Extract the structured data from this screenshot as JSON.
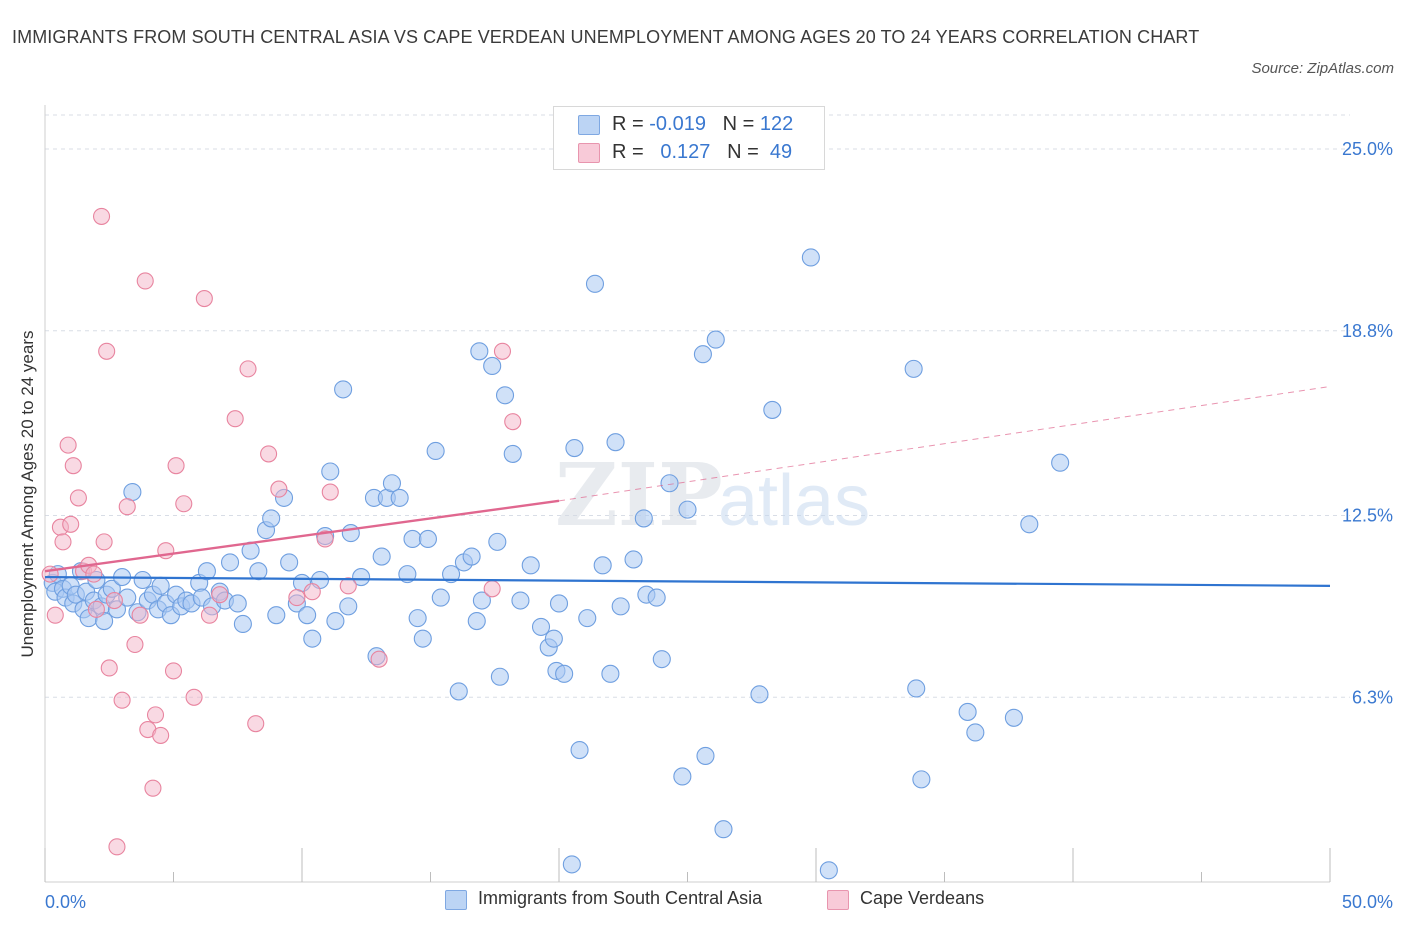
{
  "title": "IMMIGRANTS FROM SOUTH CENTRAL ASIA VS CAPE VERDEAN UNEMPLOYMENT AMONG AGES 20 TO 24 YEARS CORRELATION CHART",
  "source": "Source: ZipAtlas.com",
  "watermark": {
    "zip": "ZIP",
    "atlas": "atlas"
  },
  "legend_top": {
    "rows": [
      {
        "r_label": "R =",
        "r_value": "-0.019",
        "n_label": "N =",
        "n_value": "122",
        "color": "#a9c8f2"
      },
      {
        "r_label": "R =",
        "r_value": "0.127",
        "n_label": "N =",
        "n_value": "49",
        "color": "#f4b3c8"
      }
    ]
  },
  "legend_bottom": {
    "items": [
      {
        "label": "Immigrants from South Central Asia",
        "color": "#a9c8f2"
      },
      {
        "label": "Cape Verdeans",
        "color": "#f4b3c8"
      }
    ]
  },
  "colors": {
    "blue_fill": "#a9c8f2",
    "blue_stroke": "#6f9fe0",
    "blue_line": "#2f74d0",
    "pink_fill": "#f4b3c8",
    "pink_stroke": "#e8849f",
    "pink_line": "#e0678f",
    "tick_label": "#3a78d0",
    "grid": "#d8dde6"
  },
  "chart_data": {
    "type": "scatter",
    "title": "IMMIGRANTS FROM SOUTH CENTRAL ASIA VS CAPE VERDEAN UNEMPLOYMENT AMONG AGES 20 TO 24 YEARS CORRELATION CHART",
    "xlabel": "",
    "ylabel": "Unemployment Among Ages 20 to 24 years",
    "xlim": [
      0,
      50
    ],
    "ylim": [
      0,
      26.5
    ],
    "x_tick_labels": [
      "0.0%",
      "50.0%"
    ],
    "y_ticks": [
      6.3,
      12.5,
      18.8,
      25.0
    ],
    "y_tick_labels": [
      "6.3%",
      "12.5%",
      "18.8%",
      "25.0%"
    ],
    "grid": "horizontal dashed",
    "legend_position": "top-center",
    "series": [
      {
        "name": "Immigrants from South Central Asia",
        "trend": {
          "x": [
            0,
            50
          ],
          "y": [
            10.4,
            10.1
          ],
          "style": "solid"
        },
        "points": [
          [
            0.3,
            10.2
          ],
          [
            0.4,
            9.9
          ],
          [
            0.5,
            10.5
          ],
          [
            0.7,
            10.0
          ],
          [
            0.8,
            9.7
          ],
          [
            1.0,
            10.1
          ],
          [
            1.1,
            9.5
          ],
          [
            1.2,
            9.8
          ],
          [
            1.4,
            10.6
          ],
          [
            1.5,
            9.3
          ],
          [
            1.6,
            9.9
          ],
          [
            1.7,
            9.0
          ],
          [
            1.9,
            9.6
          ],
          [
            2.0,
            10.3
          ],
          [
            2.2,
            9.4
          ],
          [
            2.3,
            8.9
          ],
          [
            2.4,
            9.8
          ],
          [
            2.6,
            10.0
          ],
          [
            2.8,
            9.3
          ],
          [
            3.0,
            10.4
          ],
          [
            3.2,
            9.7
          ],
          [
            3.4,
            13.3
          ],
          [
            3.6,
            9.2
          ],
          [
            3.8,
            10.3
          ],
          [
            4.0,
            9.6
          ],
          [
            4.2,
            9.8
          ],
          [
            4.4,
            9.3
          ],
          [
            4.5,
            10.1
          ],
          [
            4.7,
            9.5
          ],
          [
            4.9,
            9.1
          ],
          [
            5.1,
            9.8
          ],
          [
            5.3,
            9.4
          ],
          [
            5.5,
            9.6
          ],
          [
            5.7,
            9.5
          ],
          [
            6.0,
            10.2
          ],
          [
            6.1,
            9.7
          ],
          [
            6.3,
            10.6
          ],
          [
            6.5,
            9.4
          ],
          [
            6.8,
            9.9
          ],
          [
            7.0,
            9.6
          ],
          [
            7.2,
            10.9
          ],
          [
            7.5,
            9.5
          ],
          [
            7.7,
            8.8
          ],
          [
            8.0,
            11.3
          ],
          [
            8.3,
            10.6
          ],
          [
            8.6,
            12.0
          ],
          [
            8.8,
            12.4
          ],
          [
            9.0,
            9.1
          ],
          [
            9.3,
            13.1
          ],
          [
            9.5,
            10.9
          ],
          [
            9.8,
            9.5
          ],
          [
            10.0,
            10.2
          ],
          [
            10.2,
            9.1
          ],
          [
            10.4,
            8.3
          ],
          [
            10.7,
            10.3
          ],
          [
            10.9,
            11.8
          ],
          [
            11.1,
            14.0
          ],
          [
            11.3,
            8.9
          ],
          [
            11.6,
            16.8
          ],
          [
            11.8,
            9.4
          ],
          [
            11.9,
            11.9
          ],
          [
            12.3,
            10.4
          ],
          [
            12.8,
            13.1
          ],
          [
            12.9,
            7.7
          ],
          [
            13.1,
            11.1
          ],
          [
            13.3,
            13.1
          ],
          [
            13.5,
            13.6
          ],
          [
            13.8,
            13.1
          ],
          [
            14.1,
            10.5
          ],
          [
            14.3,
            11.7
          ],
          [
            14.5,
            9.0
          ],
          [
            14.7,
            8.3
          ],
          [
            14.9,
            11.7
          ],
          [
            15.2,
            14.7
          ],
          [
            15.4,
            9.7
          ],
          [
            15.8,
            10.5
          ],
          [
            16.1,
            6.5
          ],
          [
            16.3,
            10.9
          ],
          [
            16.6,
            11.1
          ],
          [
            16.8,
            8.9
          ],
          [
            16.9,
            18.1
          ],
          [
            17.0,
            9.6
          ],
          [
            17.4,
            17.6
          ],
          [
            17.6,
            11.6
          ],
          [
            17.7,
            7.0
          ],
          [
            17.9,
            16.6
          ],
          [
            18.2,
            14.6
          ],
          [
            18.5,
            9.6
          ],
          [
            18.9,
            10.8
          ],
          [
            19.3,
            8.7
          ],
          [
            19.6,
            8.0
          ],
          [
            19.8,
            8.3
          ],
          [
            19.9,
            7.2
          ],
          [
            20.0,
            9.5
          ],
          [
            20.2,
            7.1
          ],
          [
            20.6,
            14.8
          ],
          [
            20.8,
            4.5
          ],
          [
            21.1,
            9.0
          ],
          [
            21.4,
            20.4
          ],
          [
            21.7,
            10.8
          ],
          [
            22.0,
            7.1
          ],
          [
            22.2,
            15.0
          ],
          [
            22.4,
            9.4
          ],
          [
            22.9,
            11.0
          ],
          [
            23.3,
            12.4
          ],
          [
            23.4,
            9.8
          ],
          [
            23.8,
            9.7
          ],
          [
            24.0,
            7.6
          ],
          [
            24.3,
            13.6
          ],
          [
            24.8,
            3.6
          ],
          [
            25.0,
            12.7
          ],
          [
            25.6,
            18.0
          ],
          [
            25.7,
            4.3
          ],
          [
            26.1,
            18.5
          ],
          [
            26.4,
            1.8
          ],
          [
            27.8,
            6.4
          ],
          [
            28.3,
            16.1
          ],
          [
            29.8,
            21.3
          ],
          [
            33.8,
            17.5
          ],
          [
            33.9,
            6.6
          ],
          [
            34.1,
            3.5
          ],
          [
            35.9,
            5.8
          ],
          [
            36.2,
            5.1
          ],
          [
            37.7,
            5.6
          ],
          [
            38.3,
            12.2
          ],
          [
            39.5,
            14.3
          ],
          [
            20.5,
            0.6
          ],
          [
            30.5,
            0.4
          ]
        ]
      },
      {
        "name": "Cape Verdeans",
        "trend": {
          "x": [
            0,
            20,
            50
          ],
          "y": [
            10.6,
            13.0,
            16.9
          ],
          "style": "solid to 20, dashed beyond"
        },
        "points": [
          [
            0.2,
            10.5
          ],
          [
            0.4,
            9.1
          ],
          [
            0.6,
            12.1
          ],
          [
            0.7,
            11.6
          ],
          [
            0.9,
            14.9
          ],
          [
            1.0,
            12.2
          ],
          [
            1.1,
            14.2
          ],
          [
            1.3,
            13.1
          ],
          [
            1.5,
            10.6
          ],
          [
            1.7,
            10.8
          ],
          [
            1.9,
            10.5
          ],
          [
            2.0,
            9.3
          ],
          [
            2.2,
            22.7
          ],
          [
            2.3,
            11.6
          ],
          [
            2.4,
            18.1
          ],
          [
            2.5,
            7.3
          ],
          [
            2.7,
            9.6
          ],
          [
            2.8,
            1.2
          ],
          [
            3.0,
            6.2
          ],
          [
            3.2,
            12.8
          ],
          [
            3.5,
            8.1
          ],
          [
            3.7,
            9.1
          ],
          [
            3.9,
            20.5
          ],
          [
            4.0,
            5.2
          ],
          [
            4.2,
            3.2
          ],
          [
            4.3,
            5.7
          ],
          [
            4.5,
            5.0
          ],
          [
            4.7,
            11.3
          ],
          [
            5.0,
            7.2
          ],
          [
            5.1,
            14.2
          ],
          [
            5.4,
            12.9
          ],
          [
            5.8,
            6.3
          ],
          [
            6.2,
            19.9
          ],
          [
            6.4,
            9.1
          ],
          [
            6.8,
            9.8
          ],
          [
            7.4,
            15.8
          ],
          [
            7.9,
            17.5
          ],
          [
            8.2,
            5.4
          ],
          [
            8.7,
            14.6
          ],
          [
            9.1,
            13.4
          ],
          [
            9.8,
            9.7
          ],
          [
            10.4,
            9.9
          ],
          [
            11.1,
            13.3
          ],
          [
            11.8,
            10.1
          ],
          [
            13.0,
            7.6
          ],
          [
            17.4,
            10.0
          ],
          [
            17.8,
            18.1
          ],
          [
            18.2,
            15.7
          ],
          [
            10.9,
            11.7
          ]
        ]
      }
    ]
  }
}
